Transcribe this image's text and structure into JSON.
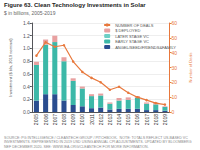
{
  "chart_data": {
    "type": "bar",
    "title": "Figure 63. Clean Technology Investments in Solar",
    "subtitle": "$ in billions, 2005-2019",
    "footnote": "SOURCE: PG INTELLIGENCE / CLEANTECH GROUP / PITCHBOOK.  NOTE: TOTALS REFLECT US-BASED VC INVESTMENTS. REPRESENTED IN 2019 USD USING ANNUAL CPI ADJUSTMENTS. UPDATED BY BLOOMBERG NEF DECEMBER 2020. SEE: WWW.IEA.ORG/CLEANTECH FOR MORE INFORMATION.",
    "categories": [
      "2005",
      "2006",
      "2007",
      "2008",
      "2009",
      "2010",
      "2011",
      "2012",
      "2013",
      "2014",
      "2015",
      "2016",
      "2017",
      "2018",
      "2019"
    ],
    "stacked": true,
    "series": [
      {
        "name": "ANGEL/SEED/FRIENDS&FAMILY",
        "type": "bar",
        "color": "#2a4d8f",
        "values": [
          0.18,
          0.28,
          0.28,
          0.18,
          0.11,
          0.09,
          0.06,
          0.07,
          0.04,
          0.05,
          0.05,
          0.05,
          0.03,
          0.03,
          0.02
        ]
      },
      {
        "name": "EARLY STAGE VC",
        "type": "bar",
        "color": "#3cb8a8",
        "values": [
          0.56,
          0.78,
          0.82,
          0.62,
          0.38,
          0.28,
          0.19,
          0.19,
          0.09,
          0.13,
          0.14,
          0.17,
          0.1,
          0.09,
          0.06
        ]
      },
      {
        "name": "LATER STAGE VC",
        "type": "bar",
        "color": "#6ecfc5",
        "values": [
          null,
          null,
          null,
          null,
          null,
          null,
          null,
          null,
          null,
          null,
          null,
          null,
          null,
          null,
          null
        ]
      },
      {
        "name": "$ DEPLOYED",
        "type": "bar",
        "color": "#e8a0a0",
        "values": [
          0.05,
          0.08,
          0.1,
          0.06,
          0.04,
          0.03,
          0.03,
          0.03,
          0.02,
          0.04,
          0.04,
          0.03,
          0.02,
          0.03,
          0.01
        ]
      },
      {
        "name": "NUMBER OF DEALS",
        "type": "line",
        "axis": "y2",
        "color": "#e8783c",
        "marker": "circle",
        "line_style": "solid",
        "values": [
          38,
          47,
          44,
          45,
          34,
          27,
          23,
          20,
          15,
          17,
          13,
          10,
          8,
          6,
          5
        ]
      }
    ],
    "ylabel": "Investment ($ bln, 2019 nominal)",
    "ylim": [
      0,
      1.4
    ],
    "yticks": [
      {
        "value": 0,
        "label": "0.0"
      },
      0.2,
      0.4,
      0.6,
      0.8,
      {
        "value": 1,
        "label": "1.0"
      },
      1.2,
      1.4
    ],
    "y2label": "Number of Deals",
    "y2lim": [
      0,
      60
    ],
    "y2ticks": [
      0,
      10,
      20,
      30,
      40,
      50,
      60
    ],
    "grid": true,
    "legend": "upper right"
  }
}
